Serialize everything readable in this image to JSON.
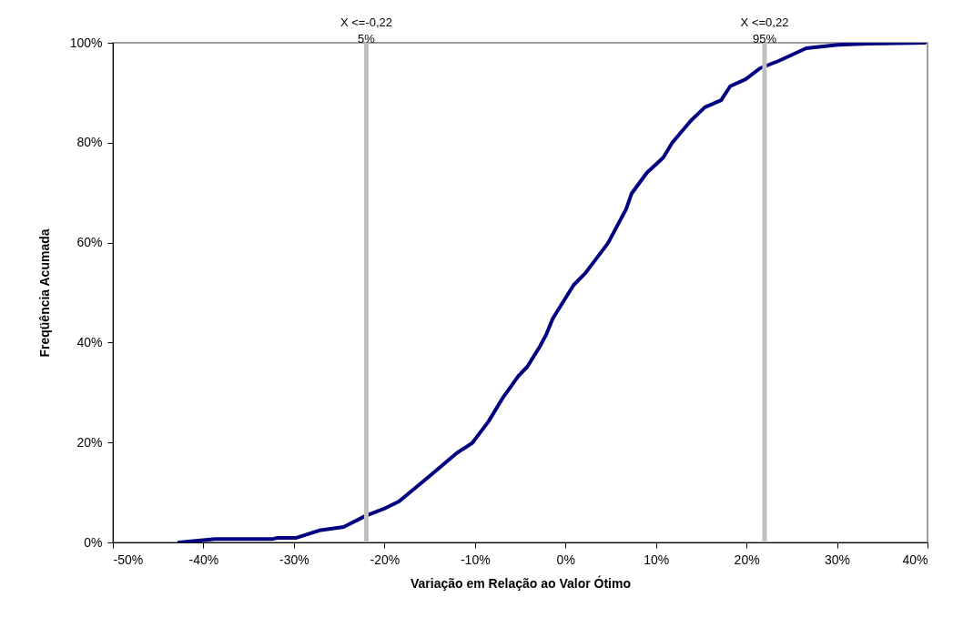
{
  "chart_data": {
    "type": "line",
    "xlabel": "Variação em Relação ao Valor Ótimo",
    "ylabel": "Freqüência Acumada",
    "x": [
      -0.427,
      -0.387,
      -0.323,
      -0.319,
      -0.298,
      -0.272,
      -0.245,
      -0.221,
      -0.201,
      -0.184,
      -0.15,
      -0.12,
      -0.103,
      -0.085,
      -0.069,
      -0.052,
      -0.042,
      -0.028,
      -0.021,
      -0.014,
      0.009,
      0.022,
      0.047,
      0.067,
      0.073,
      0.09,
      0.108,
      0.118,
      0.138,
      0.154,
      0.172,
      0.182,
      0.199,
      0.215,
      0.236,
      0.266,
      0.301,
      0.334,
      0.397
    ],
    "series": [
      {
        "color": "#000080",
        "values": [
          0,
          0.7,
          0.7,
          0.9,
          0.9,
          2.4,
          3.1,
          5.3,
          6.7,
          8.2,
          13.3,
          17.9,
          19.9,
          24.2,
          29.0,
          33.3,
          35.2,
          39.3,
          41.7,
          44.8,
          51.5,
          53.9,
          59.9,
          66.7,
          69.8,
          74.0,
          77.0,
          80.0,
          84.3,
          87.1,
          88.5,
          91.3,
          92.7,
          94.9,
          96.4,
          98.9,
          99.6,
          99.8,
          100
        ]
      }
    ],
    "xlim": [
      -0.5,
      0.4
    ],
    "ylim": [
      0,
      100
    ],
    "xticks": [
      {
        "value": -0.5,
        "label": "-50%"
      },
      {
        "value": -0.4,
        "label": "-40%"
      },
      {
        "value": -0.3,
        "label": "-30%"
      },
      {
        "value": -0.2,
        "label": "-20%"
      },
      {
        "value": -0.1,
        "label": "-10%"
      },
      {
        "value": 0,
        "label": "0%"
      },
      {
        "value": 0.1,
        "label": "10%"
      },
      {
        "value": 0.2,
        "label": "20%"
      },
      {
        "value": 0.3,
        "label": "30%"
      },
      {
        "value": 0.4,
        "label": "40%"
      }
    ],
    "yticks": [
      {
        "value": 0,
        "label": "0%"
      },
      {
        "value": 20,
        "label": "20%"
      },
      {
        "value": 40,
        "label": "40%"
      },
      {
        "value": 60,
        "label": "60%"
      },
      {
        "value": 80,
        "label": "80%"
      },
      {
        "value": 100,
        "label": "100%"
      }
    ],
    "ref_lines": [
      {
        "axis": "x",
        "value": -0.22,
        "label": "X <=-0,22\n5%",
        "color": "#c0c0c0"
      },
      {
        "axis": "x",
        "value": 0.22,
        "label": "X <=0,22\n95%",
        "color": "#c0c0c0"
      }
    ],
    "grid": false,
    "marker": "none",
    "line_style": "solid"
  }
}
